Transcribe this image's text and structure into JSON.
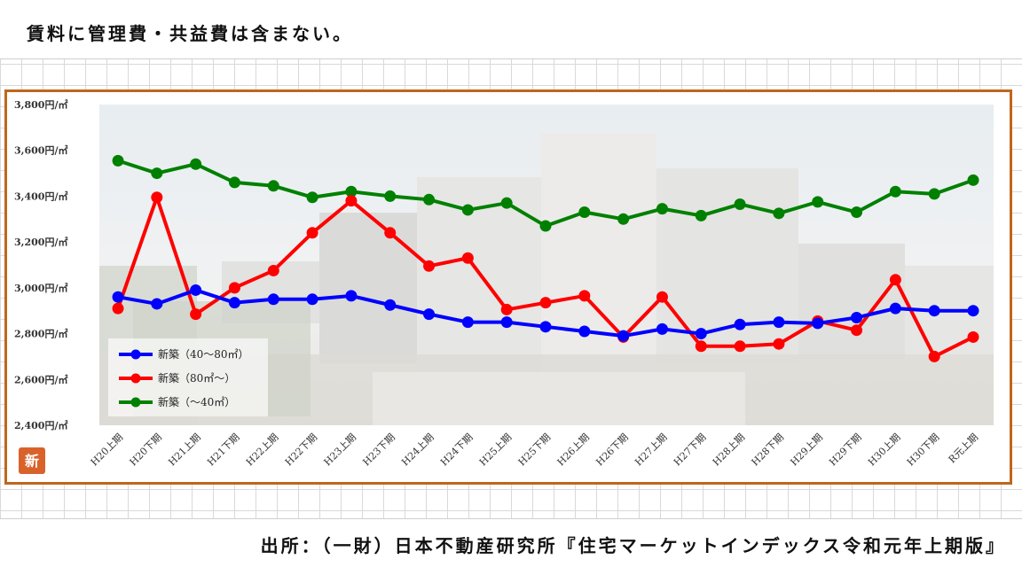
{
  "note": "賃料に管理費・共益費は含まない。",
  "source": "出所：（一財）日本不動産研究所『住宅マーケットインデックス令和元年上期版』",
  "logo_label": "新",
  "chart_data": {
    "type": "line",
    "categories": [
      "H20上期",
      "H20下期",
      "H21上期",
      "H21下期",
      "H22上期",
      "H22下期",
      "H23上期",
      "H23下期",
      "H24上期",
      "H24下期",
      "H25上期",
      "H25下期",
      "H26上期",
      "H26下期",
      "H27上期",
      "H27下期",
      "H28上期",
      "H28下期",
      "H29上期",
      "H29下期",
      "H30上期",
      "H30下期",
      "R元上期"
    ],
    "ylim": [
      2400,
      3800
    ],
    "yticks": [
      2400,
      2600,
      2800,
      3000,
      3200,
      3400,
      3600,
      3800
    ],
    "ytick_labels": [
      "2,400円/㎡",
      "2,600円/㎡",
      "2,800円/㎡",
      "3,000円/㎡",
      "3,200円/㎡",
      "3,400円/㎡",
      "3,600円/㎡",
      "3,800円/㎡"
    ],
    "legend_position": "bottom-left",
    "series": [
      {
        "name": "新築（40～80㎡）",
        "color": "#0000ff",
        "values": [
          2960,
          2930,
          2990,
          2935,
          2950,
          2950,
          2965,
          2925,
          2885,
          2850,
          2850,
          2830,
          2810,
          2790,
          2820,
          2800,
          2840,
          2850,
          2845,
          2870,
          2910,
          2900,
          2900
        ]
      },
      {
        "name": "新築（80㎡～）",
        "color": "#ff0000",
        "values": [
          2910,
          3395,
          2885,
          3000,
          3075,
          3240,
          3380,
          3240,
          3095,
          3130,
          2905,
          2935,
          2965,
          2785,
          2960,
          2745,
          2745,
          2755,
          2855,
          2815,
          3035,
          2700,
          2785
        ]
      },
      {
        "name": "新築（～40㎡）",
        "color": "#008000",
        "values": [
          3555,
          3500,
          3540,
          3460,
          3445,
          3395,
          3420,
          3400,
          3385,
          3340,
          3370,
          3270,
          3330,
          3300,
          3345,
          3315,
          3365,
          3325,
          3375,
          3330,
          3420,
          3410,
          3470
        ]
      }
    ]
  }
}
